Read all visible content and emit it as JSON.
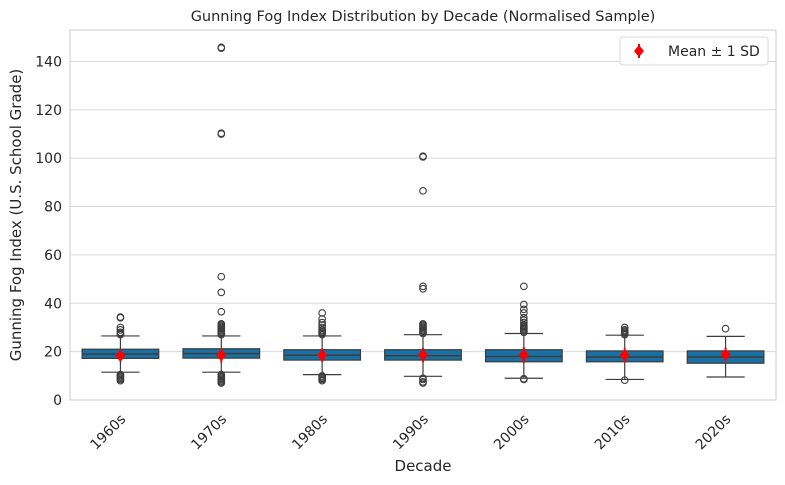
{
  "chart_data": {
    "type": "box",
    "title": "Gunning Fog Index Distribution by Decade (Normalised Sample)",
    "xlabel": "Decade",
    "ylabel": "Gunning Fog Index (U.S. School Grade)",
    "ylim": [
      0,
      153
    ],
    "yticks": [
      0,
      20,
      40,
      60,
      80,
      100,
      120,
      140
    ],
    "grid": true,
    "legend": {
      "position": "top-right",
      "entries": [
        "Mean ± 1 SD"
      ]
    },
    "colors": {
      "box": "#1a6fa3",
      "box_edge": "#3d3d3d",
      "mean": "#ff0000",
      "grid": "#d9d9d9",
      "frame": "#cccccc"
    },
    "categories": [
      "1960s",
      "1970s",
      "1980s",
      "1990s",
      "2000s",
      "2010s",
      "2020s"
    ],
    "boxes": [
      {
        "q1": 17.2,
        "median": 19.0,
        "q3": 21.0,
        "whisker_low": 11.5,
        "whisker_high": 26.5,
        "outliers": [
          8.0,
          8.5,
          9.0,
          9.5,
          10.0,
          10.5,
          27.0,
          27.5,
          28.0,
          29.0,
          30.0,
          34.0,
          34.3
        ],
        "mean": 18.3,
        "sd": 2.5
      },
      {
        "q1": 17.3,
        "median": 19.2,
        "q3": 21.2,
        "whisker_low": 11.5,
        "whisker_high": 26.5,
        "outliers": [
          7.0,
          7.5,
          8.0,
          8.5,
          9.0,
          9.5,
          10.0,
          10.5,
          27.0,
          27.5,
          28.0,
          28.5,
          29.0,
          29.5,
          30.0,
          30.5,
          31.0,
          31.5,
          36.5,
          44.5,
          51.0,
          110.0,
          110.3,
          145.5,
          145.8
        ],
        "mean": 18.5,
        "sd": 3.0
      },
      {
        "q1": 16.5,
        "median": 18.5,
        "q3": 20.8,
        "whisker_low": 10.5,
        "whisker_high": 26.5,
        "outliers": [
          8.0,
          8.5,
          9.0,
          9.5,
          10.0,
          27.0,
          27.5,
          28.0,
          28.5,
          29.0,
          30.0,
          31.0,
          32.0,
          33.5,
          36.0
        ],
        "mean": 18.5,
        "sd": 2.8
      },
      {
        "q1": 16.5,
        "median": 18.3,
        "q3": 20.8,
        "whisker_low": 9.8,
        "whisker_high": 27.0,
        "outliers": [
          7.0,
          7.5,
          8.5,
          9.0,
          27.5,
          28.0,
          28.5,
          29.0,
          29.5,
          30.0,
          30.5,
          31.0,
          31.5,
          46.0,
          47.0,
          86.5,
          100.5,
          100.8
        ],
        "mean": 18.6,
        "sd": 3.0
      },
      {
        "q1": 15.8,
        "median": 18.0,
        "q3": 20.8,
        "whisker_low": 9.0,
        "whisker_high": 27.5,
        "outliers": [
          8.5,
          8.8,
          28.0,
          28.5,
          29.0,
          29.5,
          30.0,
          30.5,
          31.0,
          32.0,
          33.0,
          34.0,
          36.0,
          37.5,
          39.5,
          47.0
        ],
        "mean": 18.6,
        "sd": 3.3
      },
      {
        "q1": 15.8,
        "median": 17.8,
        "q3": 20.3,
        "whisker_low": 8.5,
        "whisker_high": 26.8,
        "outliers": [
          8.2,
          27.0,
          27.5,
          28.0,
          28.5,
          29.0,
          30.0
        ],
        "mean": 18.5,
        "sd": 3.0
      },
      {
        "q1": 15.2,
        "median": 17.8,
        "q3": 20.3,
        "whisker_low": 9.5,
        "whisker_high": 26.3,
        "outliers": [
          29.5
        ],
        "mean": 18.8,
        "sd": 2.9
      }
    ]
  }
}
